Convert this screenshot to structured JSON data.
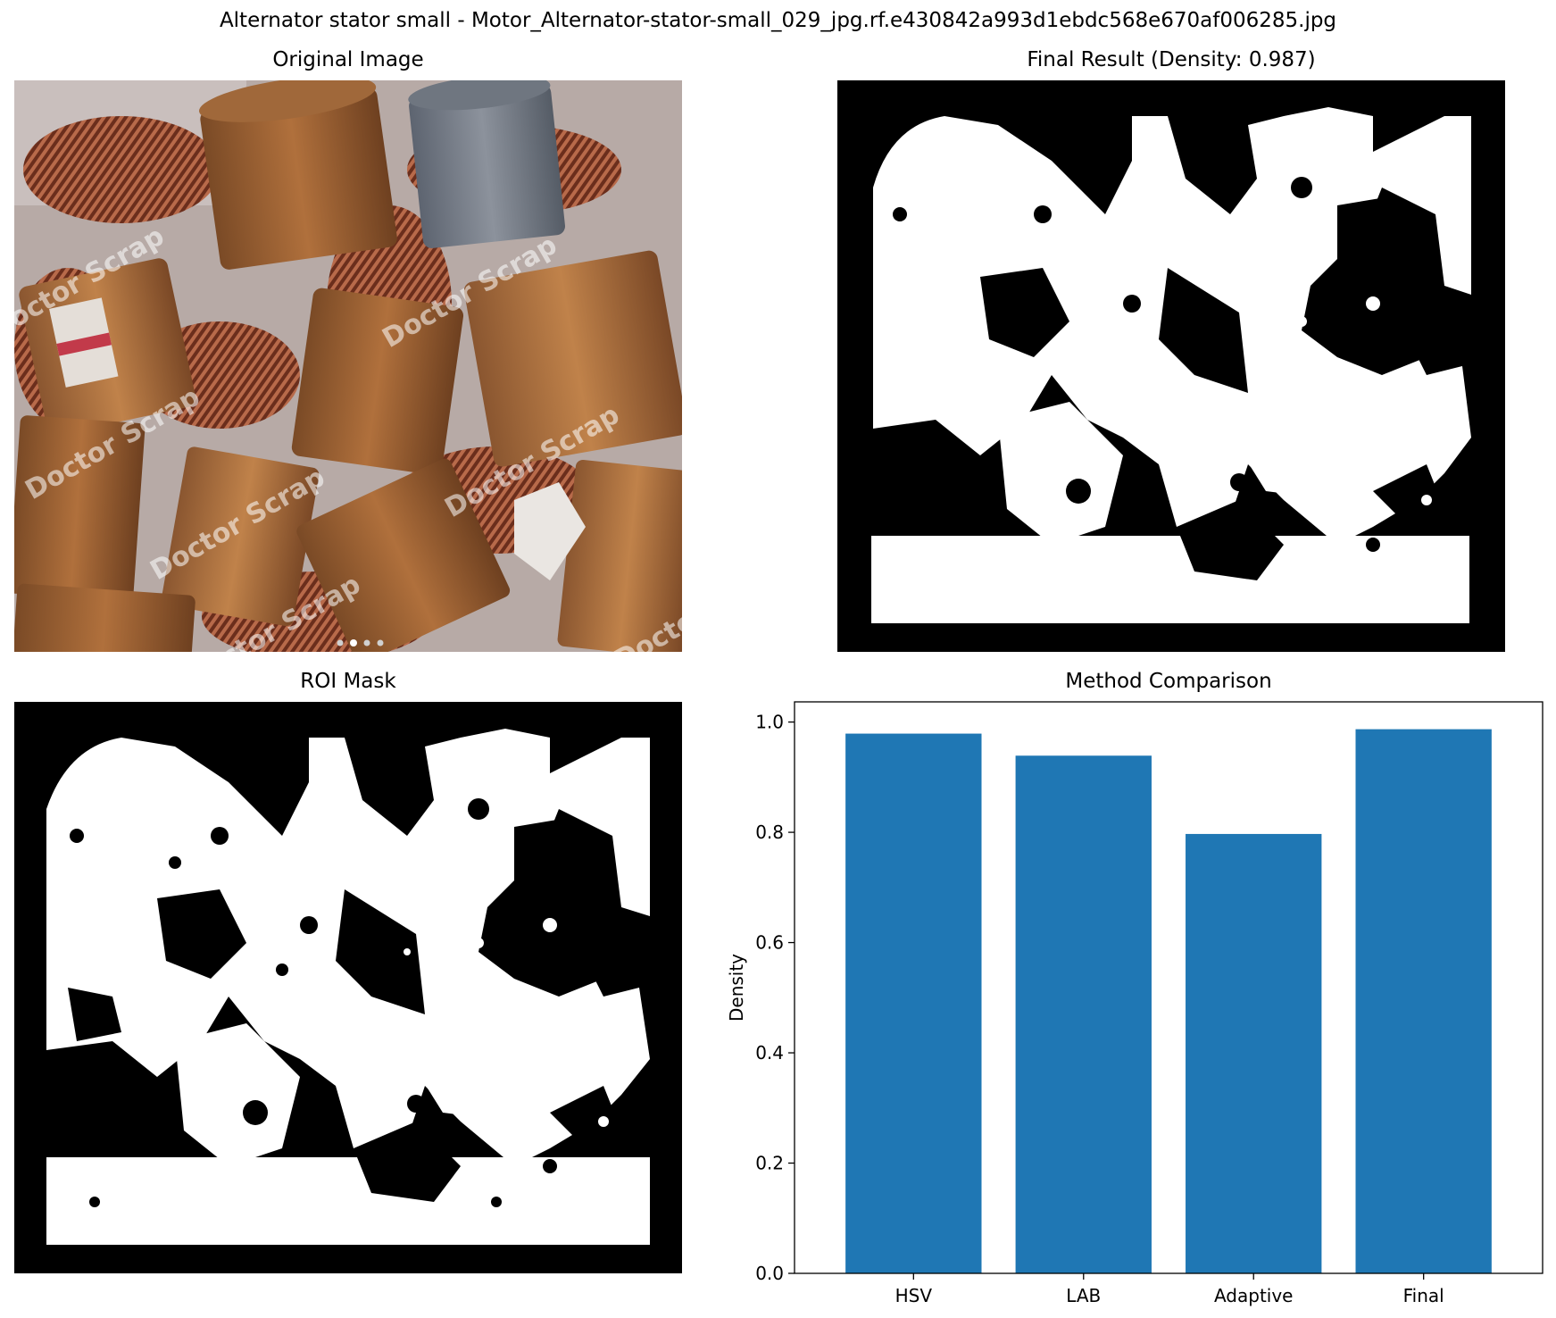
{
  "figure": {
    "suptitle": "Alternator stator small - Motor_Alternator-stator-small_029_jpg.rf.e430842a993d1ebdc568e670af006285.jpg"
  },
  "panels": {
    "original": {
      "title": "Original Image",
      "watermark": "Doctor Scrap"
    },
    "final": {
      "title": "Final Result (Density: 0.987)"
    },
    "roi": {
      "title": "ROI Mask"
    },
    "comparison": {
      "title": "Method Comparison"
    }
  },
  "colors": {
    "bar": "#1f77b4",
    "mask_fg": "#ffffff",
    "mask_bg": "#000000"
  },
  "chart_data": {
    "type": "bar",
    "title": "Method Comparison",
    "categories": [
      "HSV",
      "LAB",
      "Adaptive",
      "Final"
    ],
    "values": [
      0.979,
      0.939,
      0.797,
      0.987
    ],
    "xlabel": "",
    "ylabel": "Density",
    "ylim": [
      0,
      1.0366
    ],
    "yticks": [
      0.0,
      0.2,
      0.4,
      0.6,
      0.8,
      1.0
    ],
    "ytick_labels": [
      "0.0",
      "0.2",
      "0.4",
      "0.6",
      "0.8",
      "1.0"
    ],
    "grid": false,
    "legend": "none"
  }
}
